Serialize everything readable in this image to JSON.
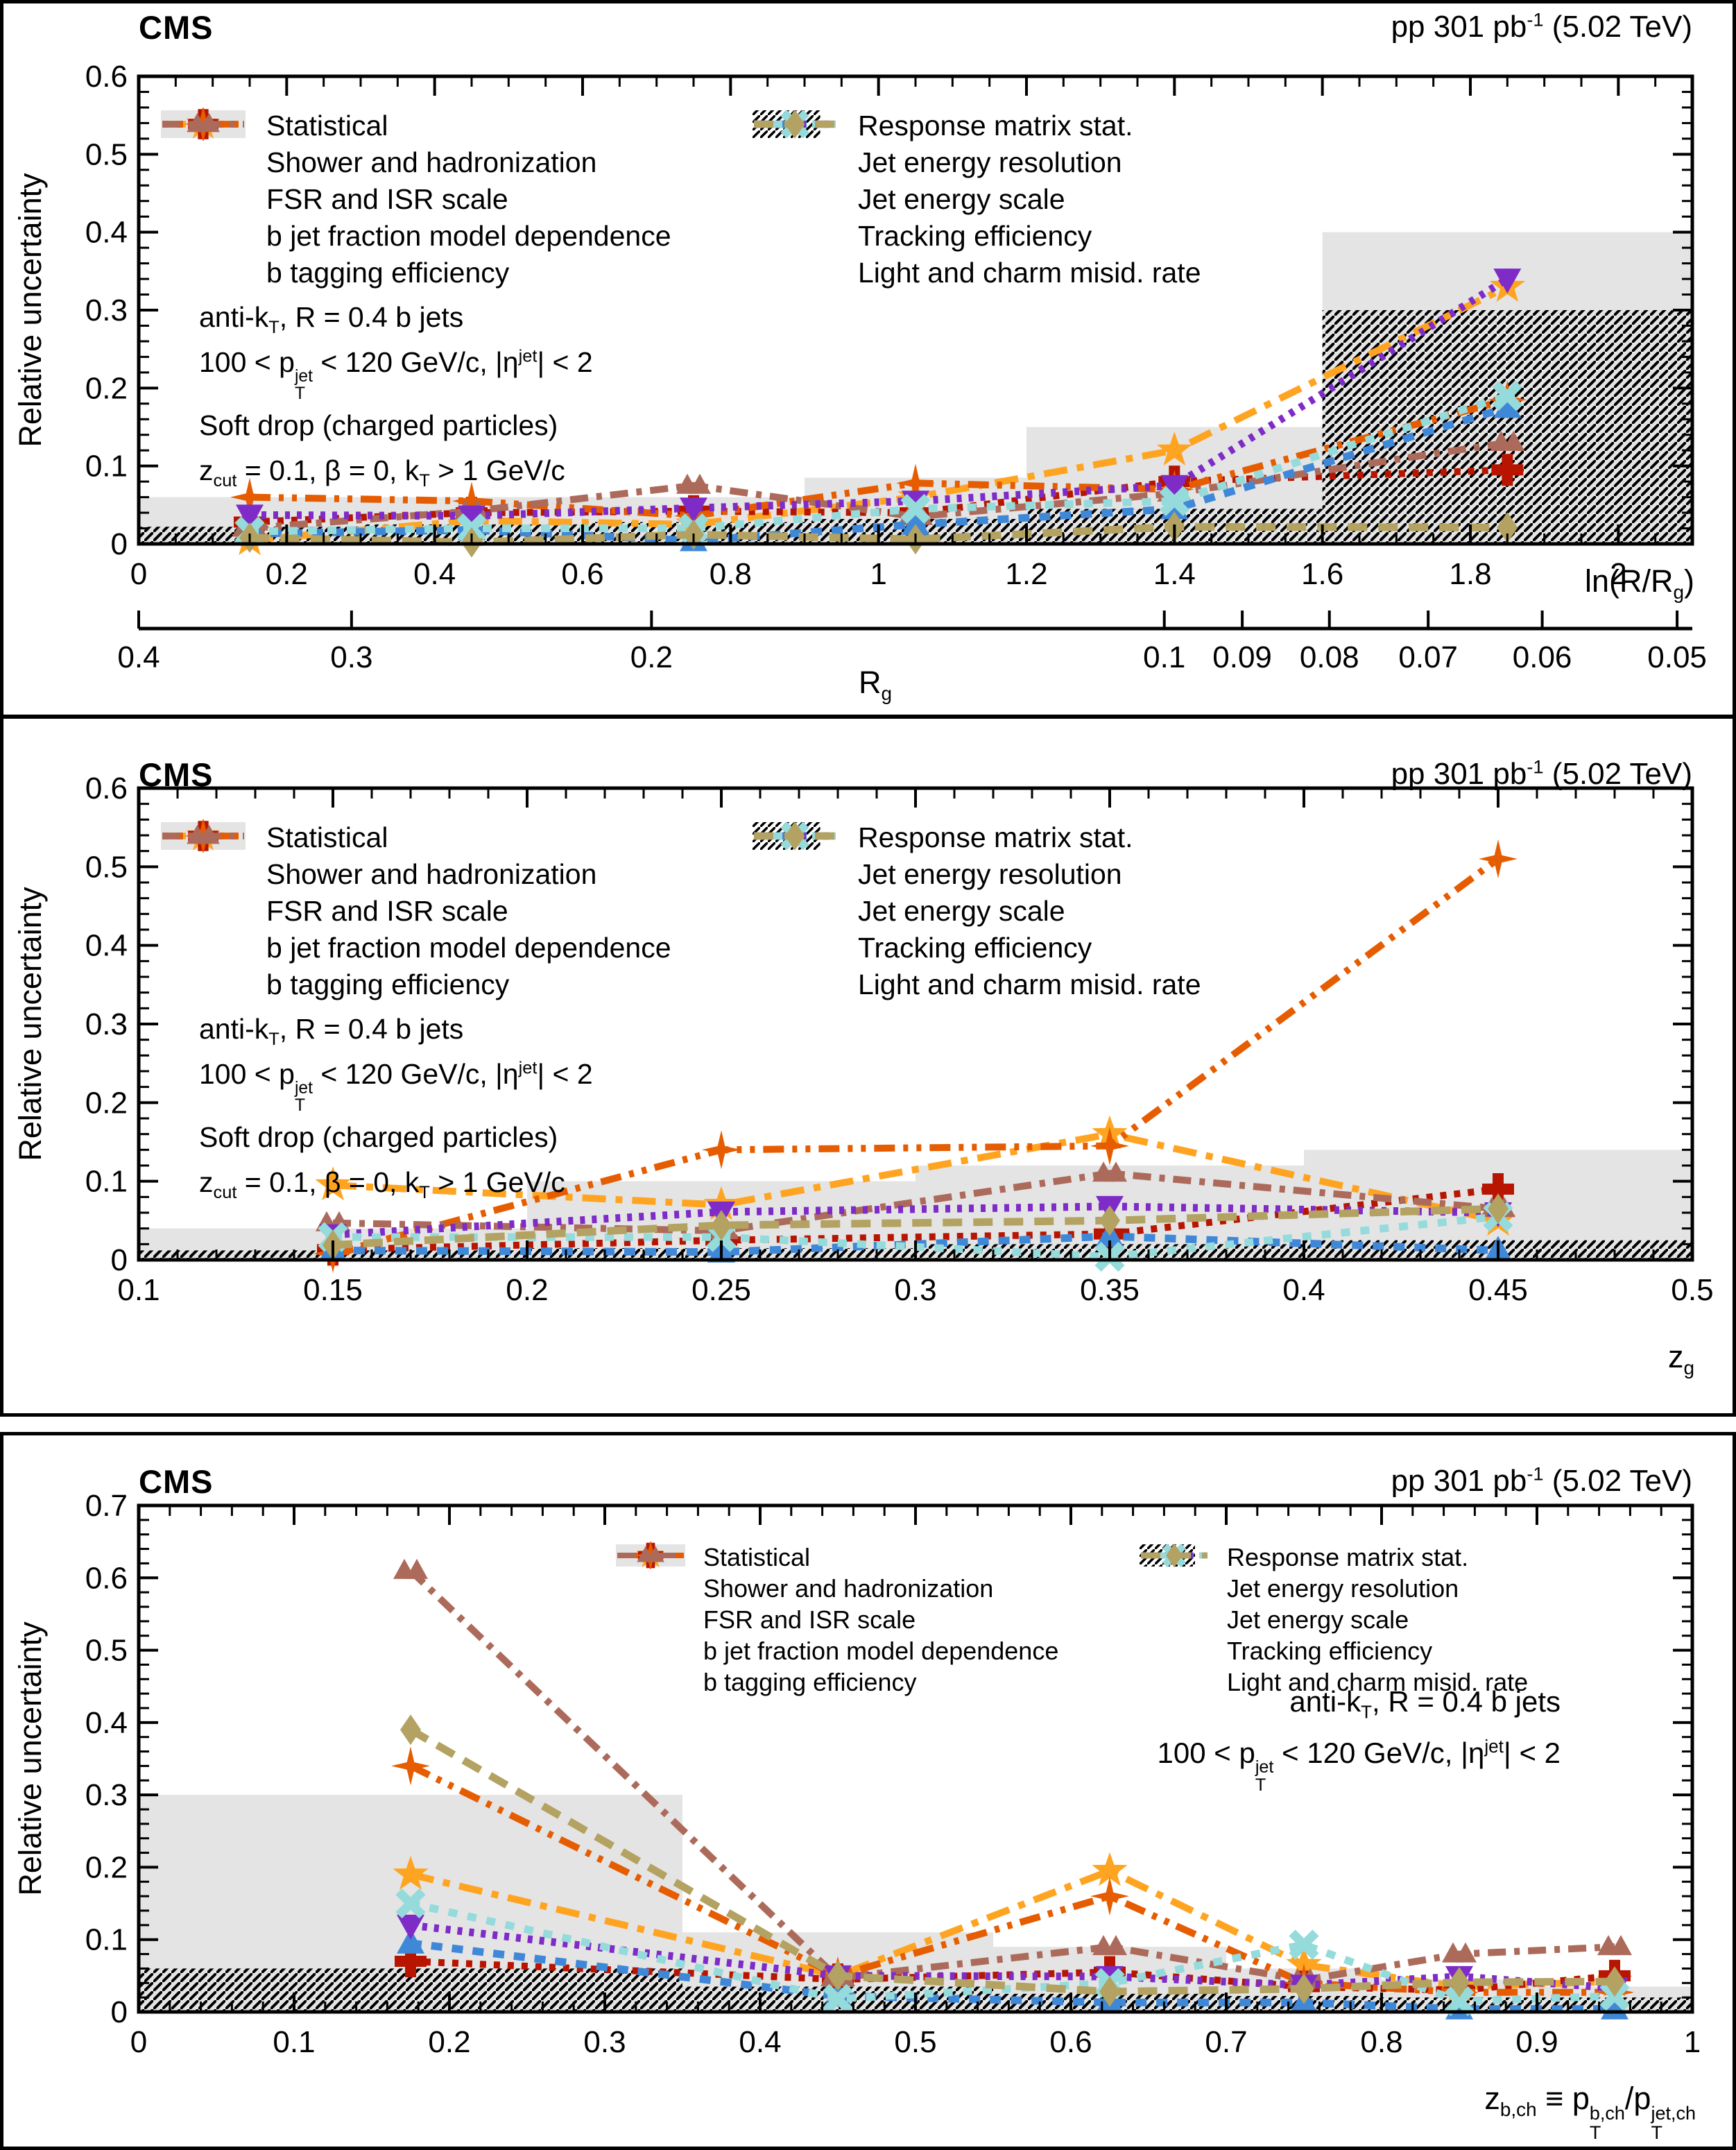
{
  "header": {
    "experiment": "CMS",
    "lumi": "pp 301 pb^{-1} (5.02 TeV)"
  },
  "legend": {
    "items": [
      {
        "key": "statistical",
        "label": "Statistical"
      },
      {
        "key": "shower",
        "label": "Shower and hadronization"
      },
      {
        "key": "fsr_isr",
        "label": "FSR and ISR scale"
      },
      {
        "key": "b_jet_fraction",
        "label": "b jet fraction model dependence"
      },
      {
        "key": "b_tagging",
        "label": "b tagging efficiency"
      },
      {
        "key": "response_matrix",
        "label": "Response matrix stat."
      },
      {
        "key": "jer",
        "label": "Jet energy resolution"
      },
      {
        "key": "jes",
        "label": "Jet energy scale"
      },
      {
        "key": "tracking",
        "label": "Tracking efficiency"
      },
      {
        "key": "light_charm",
        "label": "Light and charm misid. rate"
      }
    ]
  },
  "info_full": [
    "anti-k_{T}, R = 0.4 b jets",
    "100 < p_{T}^{jet} < 120 GeV/c, |η^{jet}| < 2",
    "Soft drop (charged particles)",
    "z_{cut} = 0.1, β = 0, k_{T} > 1 GeV/c"
  ],
  "info_short": [
    "anti-k_{T}, R = 0.4 b jets",
    "100 < p_{T}^{jet} < 120 GeV/c, |η^{jet}| < 2"
  ],
  "colors": {
    "statistical": "#e4e4e4",
    "response_matrix": "#000000",
    "shower": "#FFA420",
    "fsr_isr": "#B81500",
    "b_jet_fraction": "#E65C00",
    "b_tagging": "#AC6A5B",
    "jer": "#3F88D8",
    "jes": "#7E2BC8",
    "tracking": "#95DBDB",
    "light_charm": "#B3A261"
  },
  "chart_data": [
    {
      "type": "line",
      "title": "",
      "ylabel": "Relative uncertainty",
      "xlabel": "ln(R/R_{g})",
      "xlim": [
        0,
        2.1
      ],
      "ylim": [
        0,
        0.6
      ],
      "x_major_step": 0.2,
      "x_minor_step": 0.05,
      "y_major_step": 0.1,
      "y_minor_step": 0.02,
      "bin_edges": [
        0,
        0.3,
        0.6,
        0.9,
        1.2,
        1.6,
        2.1
      ],
      "x": [
        0.15,
        0.45,
        0.75,
        1.05,
        1.4,
        1.85
      ],
      "bands": [
        {
          "key": "statistical",
          "values": [
            0.06,
            0.06,
            0.06,
            0.085,
            0.15,
            0.4
          ]
        },
        {
          "key": "response_matrix",
          "values": [
            0.022,
            0.025,
            0.028,
            0.032,
            0.045,
            0.3
          ]
        }
      ],
      "series": [
        {
          "key": "shower",
          "values": [
            0.005,
            0.03,
            0.025,
            0.06,
            0.12,
            0.33
          ]
        },
        {
          "key": "fsr_isr",
          "values": [
            0.028,
            0.04,
            0.042,
            0.04,
            0.08,
            0.095
          ]
        },
        {
          "key": "b_jet_fraction",
          "values": [
            0.06,
            0.055,
            0.036,
            0.078,
            0.07,
            0.185
          ]
        },
        {
          "key": "b_tagging",
          "values": [
            0.02,
            0.042,
            0.075,
            0.035,
            0.065,
            0.13
          ]
        },
        {
          "key": "jer",
          "values": [
            0.013,
            0.018,
            0.004,
            0.025,
            0.045,
            0.175
          ]
        },
        {
          "key": "jes",
          "values": [
            0.037,
            0.036,
            0.046,
            0.055,
            0.075,
            0.34
          ]
        },
        {
          "key": "tracking",
          "values": [
            0.016,
            0.02,
            0.02,
            0.045,
            0.055,
            0.19
          ]
        },
        {
          "key": "light_charm",
          "values": [
            0.008,
            0.002,
            0.012,
            0.006,
            0.022,
            0.021
          ]
        }
      ],
      "secondary_axis": {
        "label": "R_{g}",
        "R": 0.4,
        "ticks": [
          0.4,
          0.3,
          0.2,
          0.1,
          0.09,
          0.08,
          0.07,
          0.06,
          0.05
        ]
      }
    },
    {
      "type": "line",
      "title": "",
      "ylabel": "Relative uncertainty",
      "xlabel": "z_{g}",
      "xlim": [
        0.1,
        0.5
      ],
      "ylim": [
        0,
        0.6
      ],
      "x_major_step": 0.05,
      "x_minor_step": 0.01,
      "y_major_step": 0.1,
      "y_minor_step": 0.02,
      "bin_edges": [
        0.1,
        0.2,
        0.3,
        0.4,
        0.5
      ],
      "x": [
        0.15,
        0.25,
        0.35,
        0.45
      ],
      "bands": [
        {
          "key": "statistical",
          "values": [
            0.04,
            0.1,
            0.12,
            0.14
          ]
        },
        {
          "key": "response_matrix",
          "values": [
            0.012,
            0.015,
            0.02,
            0.025
          ]
        }
      ],
      "series": [
        {
          "key": "shower",
          "values": [
            0.095,
            0.07,
            0.16,
            0.05
          ]
        },
        {
          "key": "fsr_isr",
          "values": [
            0.013,
            0.025,
            0.033,
            0.09
          ]
        },
        {
          "key": "b_jet_fraction",
          "values": [
            0.008,
            0.14,
            0.145,
            0.51
          ]
        },
        {
          "key": "b_tagging",
          "values": [
            0.047,
            0.037,
            0.11,
            0.065
          ]
        },
        {
          "key": "jer",
          "values": [
            0.012,
            0.01,
            0.03,
            0.012
          ]
        },
        {
          "key": "jes",
          "values": [
            0.032,
            0.061,
            0.068,
            0.06
          ]
        },
        {
          "key": "tracking",
          "values": [
            0.029,
            0.029,
            0.004,
            0.055
          ]
        },
        {
          "key": "light_charm",
          "values": [
            0.019,
            0.044,
            0.05,
            0.065
          ]
        }
      ]
    },
    {
      "type": "line",
      "title": "",
      "ylabel": "Relative uncertainty",
      "xlabel": "z_{b,ch} ≡ p_{T}^{b,ch}/p_{T}^{jet,ch}",
      "xlim": [
        0,
        1
      ],
      "ylim": [
        0,
        0.7
      ],
      "x_major_step": 0.1,
      "x_minor_step": 0.02,
      "y_major_step": 0.1,
      "y_minor_step": 0.02,
      "bin_edges": [
        0,
        0.35,
        0.55,
        0.7,
        0.8,
        0.9,
        1.0
      ],
      "x": [
        0.175,
        0.45,
        0.625,
        0.75,
        0.85,
        0.95
      ],
      "bands": [
        {
          "key": "statistical",
          "values": [
            0.3,
            0.11,
            0.09,
            0.06,
            0.045,
            0.035
          ]
        },
        {
          "key": "response_matrix",
          "values": [
            0.06,
            0.035,
            0.025,
            0.022,
            0.02,
            0.02
          ]
        }
      ],
      "series": [
        {
          "key": "shower",
          "values": [
            0.19,
            0.05,
            0.195,
            0.065,
            0.035,
            0.042
          ]
        },
        {
          "key": "fsr_isr",
          "values": [
            0.07,
            0.045,
            0.055,
            0.035,
            0.03,
            0.05
          ]
        },
        {
          "key": "b_jet_fraction",
          "values": [
            0.34,
            0.05,
            0.16,
            0.04,
            0.027,
            0.027
          ]
        },
        {
          "key": "b_tagging",
          "values": [
            0.61,
            0.047,
            0.09,
            0.044,
            0.08,
            0.09
          ]
        },
        {
          "key": "jer",
          "values": [
            0.095,
            0.022,
            0.013,
            0.013,
            0.004,
            0.004
          ]
        },
        {
          "key": "jes",
          "values": [
            0.12,
            0.05,
            0.049,
            0.037,
            0.049,
            0.033
          ]
        },
        {
          "key": "tracking",
          "values": [
            0.15,
            0.018,
            0.04,
            0.093,
            0.015,
            0.022
          ]
        },
        {
          "key": "light_charm",
          "values": [
            0.39,
            0.05,
            0.028,
            0.032,
            0.041,
            0.042
          ]
        }
      ]
    }
  ]
}
